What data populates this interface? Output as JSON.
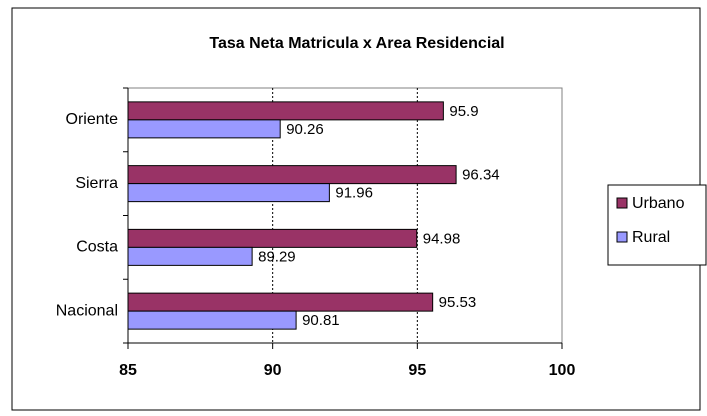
{
  "chart_data": {
    "type": "bar",
    "orientation": "horizontal",
    "title": "Tasa Neta Matricula x Area Residencial",
    "categories": [
      "Nacional",
      "Costa",
      "Sierra",
      "Oriente"
    ],
    "series": [
      {
        "name": "Urbano",
        "color": "#993366",
        "values": [
          95.53,
          94.98,
          96.34,
          95.9
        ]
      },
      {
        "name": "Rural",
        "color": "#9999ff",
        "values": [
          90.81,
          89.29,
          91.96,
          90.26
        ]
      }
    ],
    "xlim": [
      85,
      100
    ],
    "xticks": [
      85,
      90,
      95,
      100
    ],
    "grid": true,
    "legend": "right"
  }
}
